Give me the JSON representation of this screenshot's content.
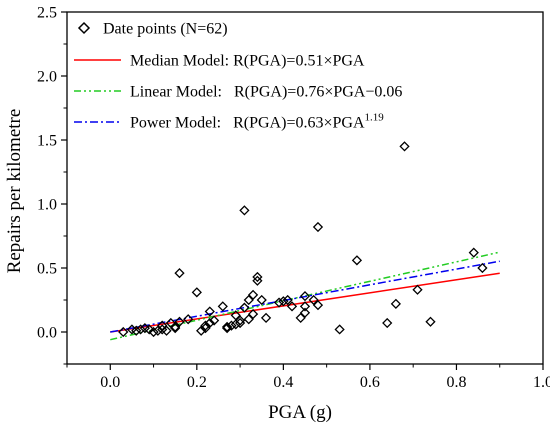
{
  "chart_data": {
    "type": "scatter",
    "xlabel": "PGA (g)",
    "ylabel": "Repairs per kilometre",
    "xlim": [
      -0.1,
      1.0
    ],
    "ylim": [
      -0.25,
      2.5
    ],
    "xticks": [
      "0.0",
      "0.2",
      "0.4",
      "0.6",
      "0.8",
      "1.0"
    ],
    "yticks": [
      "0.0",
      "0.5",
      "1.0",
      "1.5",
      "2.0",
      "2.5"
    ],
    "grid": false,
    "legend_position": "top-left",
    "legend": [
      {
        "label": "Date points (N=62)",
        "marker": "diamond",
        "color": "#000000"
      },
      {
        "label": "Median Model: R(PGA)=0.51×PGA",
        "style": "solid",
        "color": "#ff0000"
      },
      {
        "label": "Linear Model:   R(PGA)=0.76×PGA−0.06",
        "style": "dash-dot-dot",
        "color": "#22cc22"
      },
      {
        "label_main": "Power Model:   R(PGA)=0.63×PGA",
        "label_sup": "1.19",
        "style": "dash-dot",
        "color": "#0000ee"
      }
    ],
    "series": [
      {
        "name": "Date points (N=62)",
        "kind": "points",
        "marker": "diamond",
        "points": [
          [
            0.03,
            0.0
          ],
          [
            0.05,
            0.02
          ],
          [
            0.06,
            0.01
          ],
          [
            0.07,
            0.02
          ],
          [
            0.08,
            0.03
          ],
          [
            0.09,
            0.02
          ],
          [
            0.1,
            0.0
          ],
          [
            0.11,
            0.01
          ],
          [
            0.12,
            0.05
          ],
          [
            0.13,
            0.01
          ],
          [
            0.14,
            0.07
          ],
          [
            0.15,
            0.03
          ],
          [
            0.15,
            0.04
          ],
          [
            0.16,
            0.08
          ],
          [
            0.16,
            0.46
          ],
          [
            0.18,
            0.1
          ],
          [
            0.2,
            0.31
          ],
          [
            0.21,
            0.01
          ],
          [
            0.22,
            0.03
          ],
          [
            0.22,
            0.05
          ],
          [
            0.23,
            0.07
          ],
          [
            0.23,
            0.16
          ],
          [
            0.24,
            0.09
          ],
          [
            0.26,
            0.2
          ],
          [
            0.27,
            0.04
          ],
          [
            0.28,
            0.05
          ],
          [
            0.29,
            0.06
          ],
          [
            0.29,
            0.13
          ],
          [
            0.3,
            0.07
          ],
          [
            0.3,
            0.09
          ],
          [
            0.31,
            0.95
          ],
          [
            0.31,
            0.19
          ],
          [
            0.32,
            0.25
          ],
          [
            0.32,
            0.1
          ],
          [
            0.33,
            0.29
          ],
          [
            0.33,
            0.14
          ],
          [
            0.34,
            0.4
          ],
          [
            0.34,
            0.43
          ],
          [
            0.35,
            0.25
          ],
          [
            0.36,
            0.11
          ],
          [
            0.39,
            0.23
          ],
          [
            0.4,
            0.24
          ],
          [
            0.41,
            0.25
          ],
          [
            0.42,
            0.2
          ],
          [
            0.44,
            0.11
          ],
          [
            0.45,
            0.15
          ],
          [
            0.45,
            0.2
          ],
          [
            0.45,
            0.28
          ],
          [
            0.47,
            0.25
          ],
          [
            0.48,
            0.21
          ],
          [
            0.48,
            0.82
          ],
          [
            0.53,
            0.02
          ],
          [
            0.57,
            0.56
          ],
          [
            0.64,
            0.07
          ],
          [
            0.66,
            0.22
          ],
          [
            0.68,
            1.45
          ],
          [
            0.71,
            0.33
          ],
          [
            0.74,
            0.08
          ],
          [
            0.84,
            0.62
          ],
          [
            0.86,
            0.5
          ],
          [
            0.27,
            0.03
          ],
          [
            0.12,
            0.02
          ]
        ]
      },
      {
        "name": "Median Model",
        "kind": "line",
        "x": [
          0.0,
          0.9
        ],
        "y": [
          0.0,
          0.459
        ],
        "color": "#ff0000",
        "dash": "none"
      },
      {
        "name": "Linear Model",
        "kind": "line",
        "x": [
          0.0,
          0.9
        ],
        "y": [
          -0.06,
          0.624
        ],
        "color": "#22cc22",
        "dash": "7,3,2,3,2,3"
      },
      {
        "name": "Power Model",
        "kind": "line",
        "x": [
          0.0,
          0.9
        ],
        "y": [
          0.0,
          0.553
        ],
        "color": "#0000ee",
        "dash": "8,3,2,3"
      }
    ]
  }
}
